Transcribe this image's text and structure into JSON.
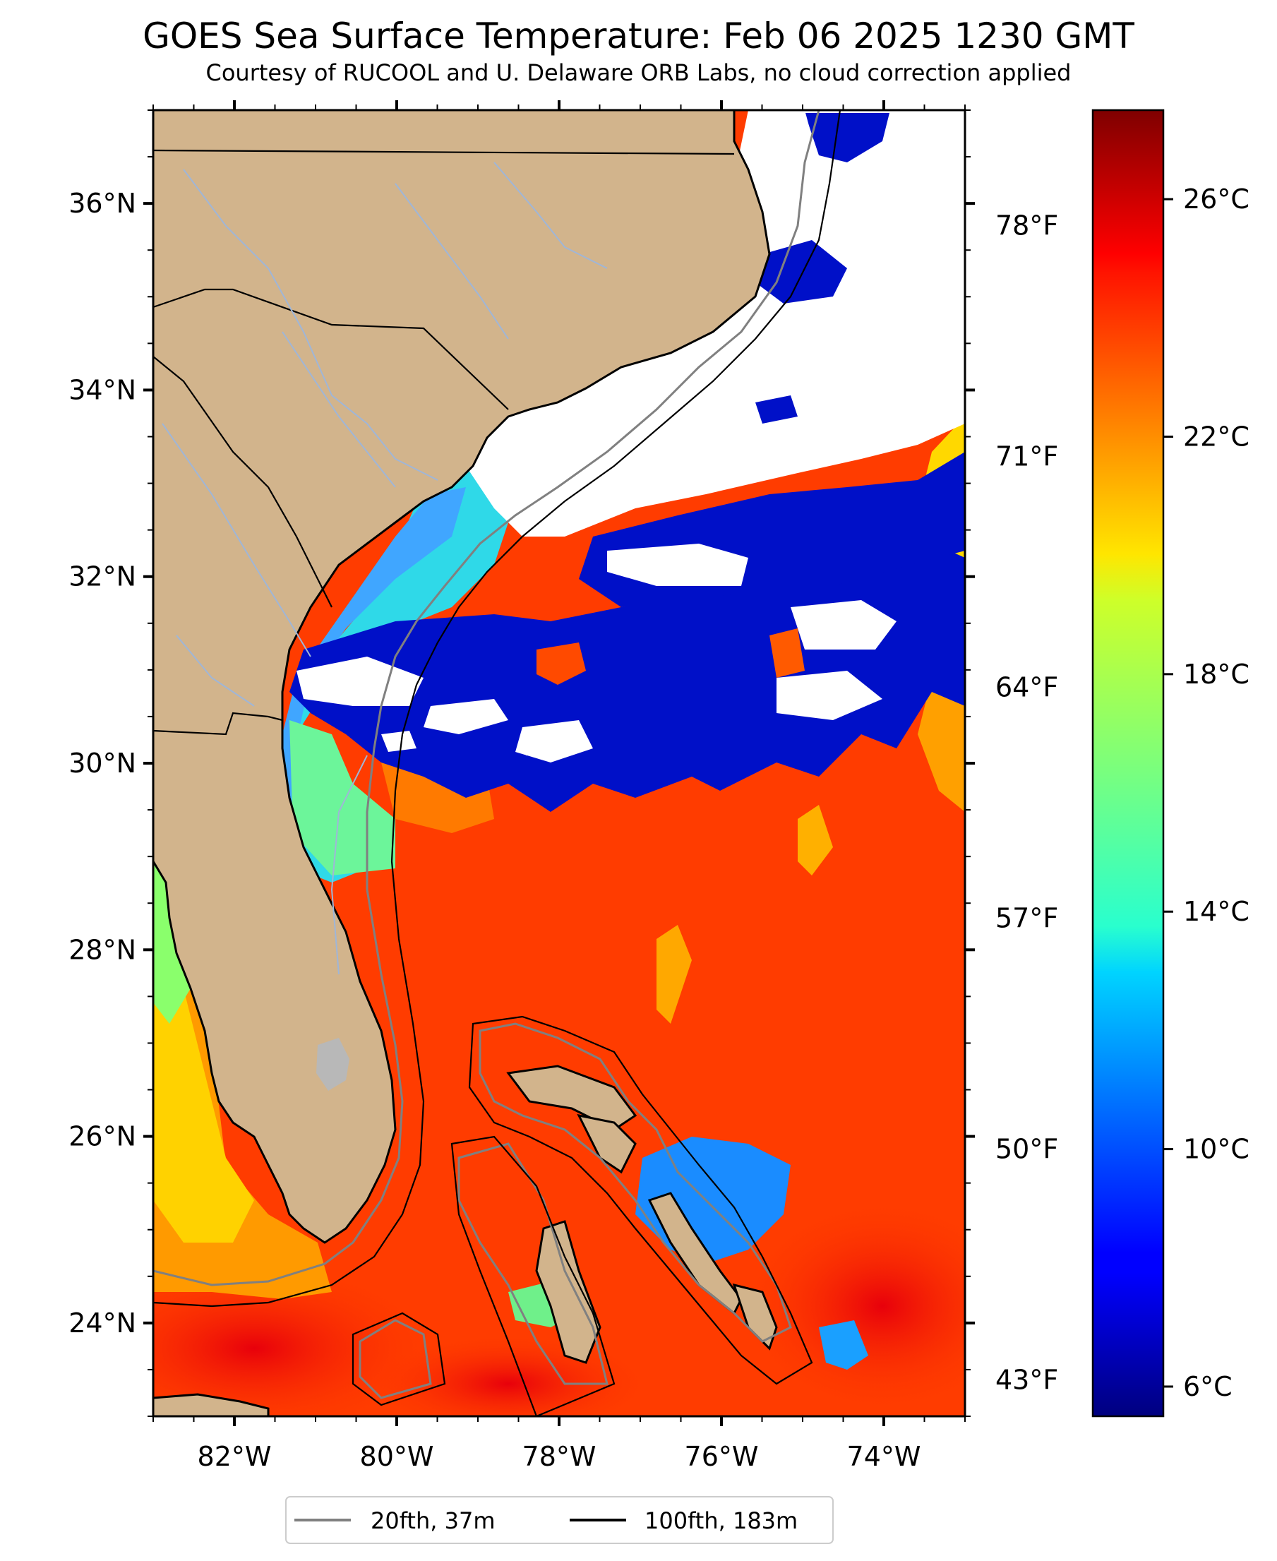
{
  "title": "GOES Sea Surface Temperature: Feb 06 2025 1230 GMT",
  "subtitle": "Courtesy of RUCOOL and U. Delaware ORB Labs, no cloud correction applied",
  "map": {
    "lon_range": [
      -83,
      -73
    ],
    "lat_range": [
      23,
      37
    ],
    "lat_ticks": [
      {
        "value": 24,
        "label": "24°N"
      },
      {
        "value": 26,
        "label": "26°N"
      },
      {
        "value": 28,
        "label": "28°N"
      },
      {
        "value": 30,
        "label": "30°N"
      },
      {
        "value": 32,
        "label": "32°N"
      },
      {
        "value": 34,
        "label": "34°N"
      },
      {
        "value": 36,
        "label": "36°N"
      }
    ],
    "lon_ticks": [
      {
        "value": -82,
        "label": "82°W"
      },
      {
        "value": -80,
        "label": "80°W"
      },
      {
        "value": -78,
        "label": "78°W"
      },
      {
        "value": -76,
        "label": "76°W"
      },
      {
        "value": -74,
        "label": "74°W"
      }
    ],
    "fahrenheit_ticks": [
      {
        "value": 78,
        "label": "78°F"
      },
      {
        "value": 71,
        "label": "71°F"
      },
      {
        "value": 64,
        "label": "64°F"
      },
      {
        "value": 57,
        "label": "57°F"
      },
      {
        "value": 50,
        "label": "50°F"
      },
      {
        "value": 43,
        "label": "43°F"
      }
    ],
    "land_color": "#d2b48c",
    "river_color": "#9fb6d8",
    "cloud_color": "#ffffff"
  },
  "colorbar": {
    "min_c": 5.5,
    "max_c": 27.5,
    "ticks": [
      {
        "value": 26,
        "label": "26°C"
      },
      {
        "value": 22,
        "label": "22°C"
      },
      {
        "value": 18,
        "label": "18°C"
      },
      {
        "value": 14,
        "label": "14°C"
      },
      {
        "value": 10,
        "label": "10°C"
      },
      {
        "value": 6,
        "label": "6°C"
      }
    ],
    "colormap": "jet"
  },
  "legend": {
    "items": [
      {
        "label": "20fth, 37m",
        "color": "#808080"
      },
      {
        "label": "100fth, 183m",
        "color": "#000000"
      }
    ]
  }
}
